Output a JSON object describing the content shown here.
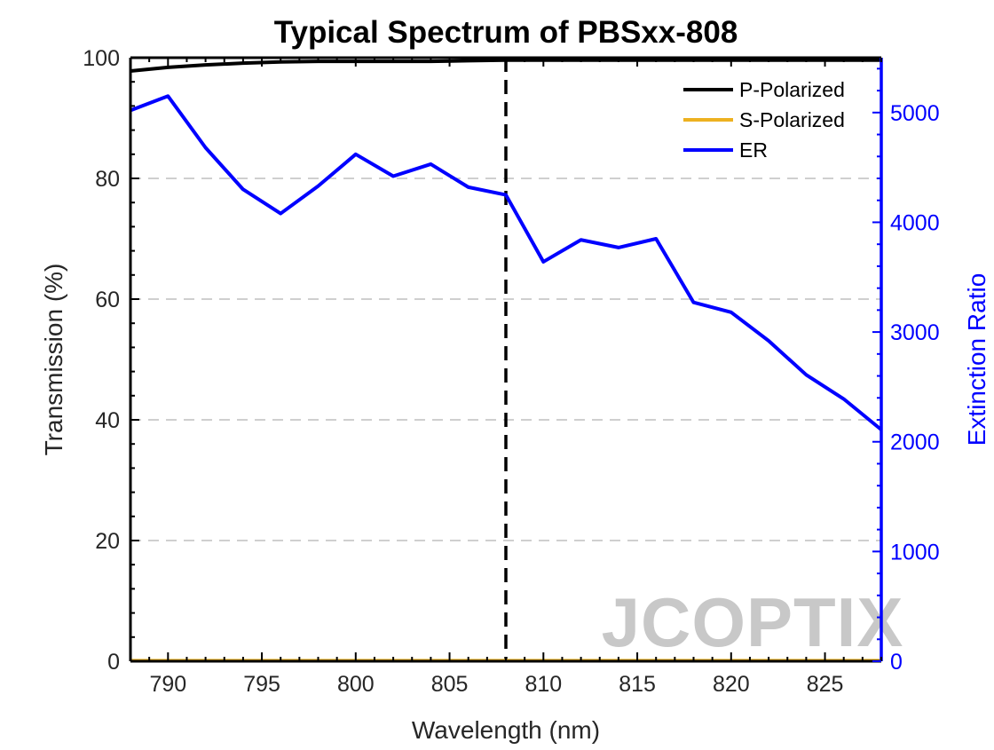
{
  "chart_data": {
    "type": "line",
    "title": "Typical Spectrum of PBSxx-808",
    "xlabel": "Wavelength (nm)",
    "ylabel_left": "Transmission (%)",
    "ylabel_right": "Extinction Ratio",
    "xlim": [
      788,
      828
    ],
    "ylim_left": [
      0,
      100
    ],
    "ylim_right": [
      0,
      5500
    ],
    "x_ticks": [
      790,
      795,
      800,
      805,
      810,
      815,
      820,
      825
    ],
    "y_left_ticks": [
      0,
      20,
      40,
      60,
      80,
      100
    ],
    "y_right_ticks": [
      0,
      1000,
      2000,
      3000,
      4000,
      5000
    ],
    "grid": "horizontal dashed",
    "legend_position": "top-right",
    "vertical_marker": {
      "x": 808,
      "style": "dashed",
      "color": "#000000"
    },
    "series": [
      {
        "name": "P-Polarized",
        "axis": "left",
        "color": "#000000",
        "x": [
          788,
          790,
          792,
          794,
          796,
          798,
          800,
          802,
          804,
          806,
          808,
          810,
          812,
          814,
          816,
          818,
          820,
          822,
          824,
          826,
          828
        ],
        "values": [
          97.8,
          98.4,
          98.8,
          99.1,
          99.3,
          99.4,
          99.4,
          99.4,
          99.4,
          99.5,
          99.6,
          99.6,
          99.6,
          99.6,
          99.6,
          99.6,
          99.6,
          99.6,
          99.6,
          99.6,
          99.6
        ]
      },
      {
        "name": "S-Polarized",
        "axis": "left",
        "color": "#EDB120",
        "x": [
          788,
          828
        ],
        "values": [
          0.1,
          0.1
        ]
      },
      {
        "name": "ER",
        "axis": "right",
        "color": "#0000ff",
        "x": [
          788,
          790,
          792,
          794,
          796,
          798,
          800,
          802,
          804,
          806,
          808,
          810,
          812,
          814,
          816,
          818,
          820,
          822,
          824,
          826,
          828
        ],
        "values": [
          5020,
          5150,
          4680,
          4300,
          4080,
          4330,
          4620,
          4420,
          4530,
          4320,
          4250,
          3640,
          3840,
          3770,
          3850,
          3270,
          3180,
          2920,
          2610,
          2390,
          2110
        ]
      }
    ]
  },
  "watermark": {
    "text": "JCOPTIX",
    "color": "#c8c8c8",
    "accent_color": "#f2d3b8"
  }
}
